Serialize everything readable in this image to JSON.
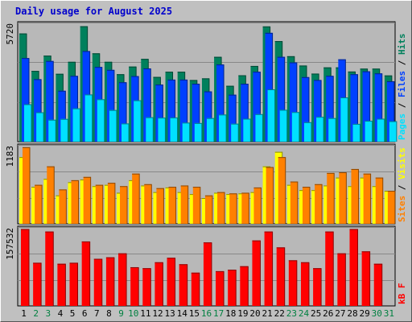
{
  "title": "Daily usage for August 2025",
  "colors": {
    "background": "#c0c0c0",
    "plot_bg": "#b8b8b8",
    "hits": "#00805c",
    "files": "#0040ff",
    "pages": "#00e0ff",
    "visits": "#ffff00",
    "sites": "#ff8000",
    "kbytes": "#ff0000",
    "title": "#0000cc",
    "weekday_label": "#000000",
    "weekend_label": "#008040"
  },
  "chart_data": [
    {
      "type": "bar",
      "panel": "hits-files-pages",
      "max_label": "5720",
      "ylim": [
        0,
        5720
      ],
      "legend_parts": [
        "Pages",
        "Files",
        "Hits"
      ],
      "categories": [
        "1",
        "2",
        "3",
        "4",
        "5",
        "6",
        "7",
        "8",
        "9",
        "10",
        "11",
        "12",
        "13",
        "14",
        "15",
        "16",
        "17",
        "18",
        "19",
        "20",
        "21",
        "22",
        "23",
        "24",
        "25",
        "26",
        "27",
        "28",
        "29",
        "30",
        "31"
      ],
      "series": [
        {
          "name": "Hits",
          "values": [
            5230,
            3420,
            4160,
            3280,
            3860,
            5580,
            4270,
            3860,
            3260,
            3630,
            4000,
            3130,
            3380,
            3380,
            2980,
            3060,
            4100,
            2700,
            3210,
            3660,
            5570,
            4860,
            4130,
            3680,
            3290,
            3590,
            3590,
            3390,
            3530,
            3530,
            3200
          ]
        },
        {
          "name": "Files",
          "values": [
            4040,
            3020,
            3900,
            2460,
            3180,
            4380,
            3610,
            3470,
            2870,
            3170,
            3540,
            2760,
            3000,
            3000,
            2800,
            2430,
            3730,
            2270,
            2800,
            3380,
            5260,
            4100,
            3830,
            3120,
            2980,
            3180,
            3980,
            3260,
            3400,
            3300,
            2920
          ]
        },
        {
          "name": "Pages",
          "values": [
            1810,
            1420,
            1060,
            1100,
            1610,
            2280,
            2050,
            1530,
            880,
            2000,
            1180,
            1160,
            1170,
            920,
            900,
            1140,
            1310,
            870,
            1110,
            1330,
            2530,
            1540,
            1430,
            940,
            1200,
            1140,
            2140,
            860,
            1010,
            1110,
            990
          ]
        }
      ]
    },
    {
      "type": "bar",
      "panel": "sites-visits",
      "max_label": "1183",
      "ylim": [
        0,
        1183
      ],
      "legend_parts": [
        "Sites",
        "Visits"
      ],
      "categories": [
        "1",
        "2",
        "3",
        "4",
        "5",
        "6",
        "7",
        "8",
        "9",
        "10",
        "11",
        "12",
        "13",
        "14",
        "15",
        "16",
        "17",
        "18",
        "19",
        "20",
        "21",
        "22",
        "23",
        "24",
        "25",
        "26",
        "27",
        "28",
        "29",
        "30",
        "31"
      ],
      "series": [
        {
          "name": "Visits",
          "values": [
            1010,
            560,
            680,
            430,
            630,
            670,
            570,
            590,
            470,
            660,
            580,
            480,
            550,
            480,
            450,
            390,
            470,
            450,
            460,
            480,
            870,
            1090,
            590,
            510,
            510,
            580,
            700,
            570,
            700,
            570,
            500
          ]
        },
        {
          "name": "Sites",
          "values": [
            1160,
            590,
            870,
            520,
            660,
            710,
            590,
            620,
            570,
            760,
            600,
            540,
            560,
            580,
            560,
            430,
            480,
            460,
            470,
            550,
            860,
            1010,
            640,
            560,
            600,
            770,
            780,
            830,
            760,
            700,
            500
          ]
        }
      ]
    },
    {
      "type": "bar",
      "panel": "kbytes",
      "max_label": "157532",
      "ylim": [
        0,
        157532
      ],
      "legend_parts": [
        "kB F"
      ],
      "categories": [
        "1",
        "2",
        "3",
        "4",
        "5",
        "6",
        "7",
        "8",
        "9",
        "10",
        "11",
        "12",
        "13",
        "14",
        "15",
        "16",
        "17",
        "18",
        "19",
        "20",
        "21",
        "22",
        "23",
        "24",
        "25",
        "26",
        "27",
        "28",
        "29",
        "30",
        "31"
      ],
      "series": [
        {
          "name": "kB F",
          "values": [
            155000,
            87000,
            150000,
            85000,
            87000,
            130000,
            95000,
            98000,
            106000,
            78000,
            76000,
            88000,
            97000,
            84000,
            67000,
            128000,
            70000,
            73000,
            80000,
            132000,
            150000,
            118000,
            92000,
            88000,
            76000,
            150000,
            106000,
            155000,
            110000,
            85000,
            0
          ]
        }
      ]
    }
  ],
  "x_labels": [
    {
      "text": "1",
      "weekend": false
    },
    {
      "text": "2",
      "weekend": true
    },
    {
      "text": "3",
      "weekend": true
    },
    {
      "text": "4",
      "weekend": false
    },
    {
      "text": "5",
      "weekend": false
    },
    {
      "text": "6",
      "weekend": false
    },
    {
      "text": "7",
      "weekend": false
    },
    {
      "text": "8",
      "weekend": false
    },
    {
      "text": "9",
      "weekend": true
    },
    {
      "text": "10",
      "weekend": true
    },
    {
      "text": "11",
      "weekend": false
    },
    {
      "text": "12",
      "weekend": false
    },
    {
      "text": "13",
      "weekend": false
    },
    {
      "text": "14",
      "weekend": false
    },
    {
      "text": "15",
      "weekend": false
    },
    {
      "text": "16",
      "weekend": true
    },
    {
      "text": "17",
      "weekend": true
    },
    {
      "text": "18",
      "weekend": false
    },
    {
      "text": "19",
      "weekend": false
    },
    {
      "text": "20",
      "weekend": false
    },
    {
      "text": "21",
      "weekend": false
    },
    {
      "text": "22",
      "weekend": false
    },
    {
      "text": "23",
      "weekend": true
    },
    {
      "text": "24",
      "weekend": true
    },
    {
      "text": "25",
      "weekend": false
    },
    {
      "text": "26",
      "weekend": false
    },
    {
      "text": "27",
      "weekend": false
    },
    {
      "text": "28",
      "weekend": false
    },
    {
      "text": "29",
      "weekend": false
    },
    {
      "text": "30",
      "weekend": true
    },
    {
      "text": "31",
      "weekend": true
    }
  ]
}
